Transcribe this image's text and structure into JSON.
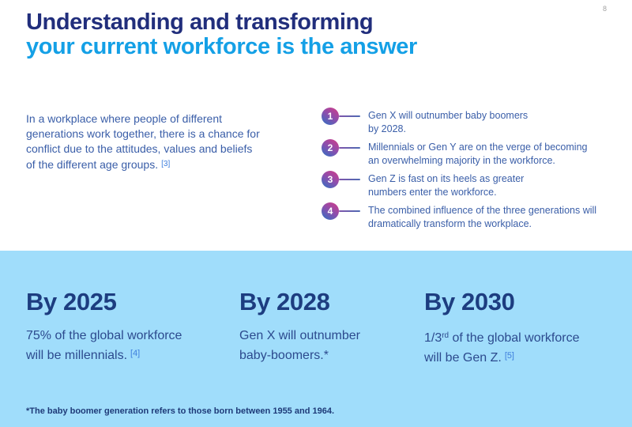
{
  "page": {
    "number": "8"
  },
  "title": {
    "line1": "Understanding and transforming",
    "line2": "your current workforce is the answer"
  },
  "intro": {
    "text": "In a workplace where people of different\ngenerations work together, there is a chance for\nconflict due to the attitudes, values and beliefs\nof the different age groups.",
    "citation": "[3]"
  },
  "points": [
    {
      "number": "1",
      "text": "Gen X will outnumber baby boomers\nby 2028."
    },
    {
      "number": "2",
      "text": "Millennials or Gen Y are on the verge of becoming\nan overwhelming majority in the workforce."
    },
    {
      "number": "3",
      "text": "Gen Z is fast on its heels as greater\nnumbers enter the workforce."
    },
    {
      "number": "4",
      "text": "The combined influence of the three generations will\ndramatically transform the workplace."
    }
  ],
  "milestones": [
    {
      "heading": "By 2025",
      "text": "75% of the global workforce\nwill be millennials.",
      "sup": "",
      "text2": "",
      "citation": "[4]"
    },
    {
      "heading": "By 2028",
      "text": "Gen X will outnumber\nbaby-boomers.*",
      "sup": "",
      "text2": "",
      "citation": ""
    },
    {
      "heading": "By 2030",
      "text": "1/3",
      "sup": "rd",
      "text2": " of the global workforce\nwill be Gen Z.",
      "citation": "[5]"
    }
  ],
  "footnote": "*The baby boomer generation refers to those born between 1955 and 1964.",
  "colors": {
    "title_navy": "#212e7c",
    "title_cyan": "#14a0e6",
    "body_blue": "#3a5ea8",
    "citation_blue": "#3d7edd",
    "band_bg": "#a0ddfb",
    "band_heading": "#1d3d80",
    "band_text": "#2c4a8e",
    "footnote_navy": "#1e3a78",
    "badge_pink": "#c93e8d",
    "badge_blue": "#3b6cc0",
    "connector": "#4f6ab3",
    "page_number_grey": "#a3a3a3"
  }
}
